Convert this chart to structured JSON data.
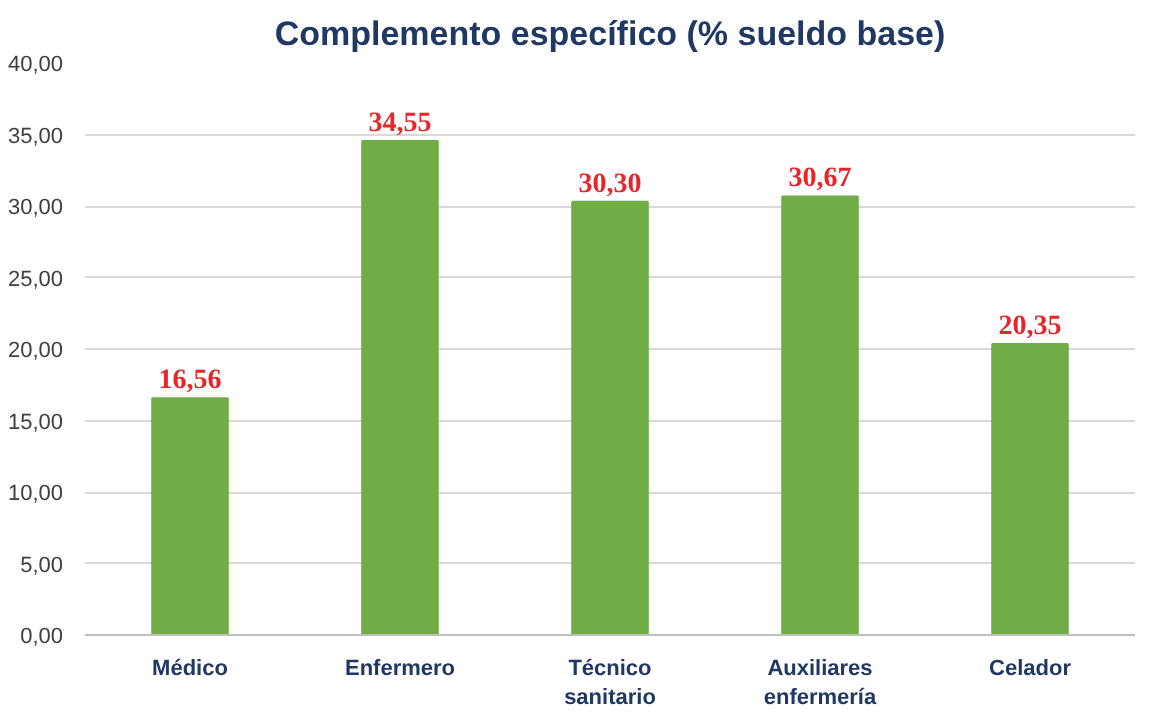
{
  "chart_data": {
    "type": "bar",
    "title": "Complemento específico (% sueldo base)",
    "categories": [
      "Médico",
      "Enfermero",
      "Técnico sanitario",
      "Auxiliares enfermería",
      "Celador"
    ],
    "values": [
      16.56,
      34.55,
      30.3,
      30.67,
      20.35
    ],
    "value_labels": [
      "16,56",
      "34,55",
      "30,30",
      "30,67",
      "20,35"
    ],
    "color": "#70ad47",
    "ylim": [
      0,
      40
    ],
    "yticks": [
      {
        "value": 0,
        "label": "0,00"
      },
      {
        "value": 5,
        "label": "5,00"
      },
      {
        "value": 10,
        "label": "10,00"
      },
      {
        "value": 15,
        "label": "15,00"
      },
      {
        "value": 20,
        "label": "20,00"
      },
      {
        "value": 25,
        "label": "25,00"
      },
      {
        "value": 30,
        "label": "30,00"
      },
      {
        "value": 35,
        "label": "35,00"
      },
      {
        "value": 40,
        "label": "40,00"
      }
    ],
    "grid": "y"
  }
}
